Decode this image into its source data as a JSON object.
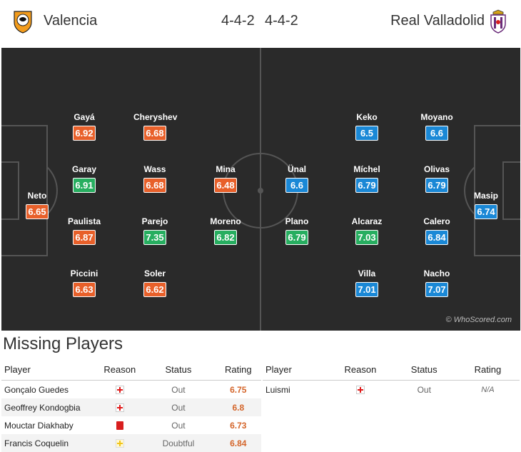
{
  "header": {
    "home_team": "Valencia",
    "home_formation": "4-4-2",
    "away_formation": "4-4-2",
    "away_team": "Real Valladolid"
  },
  "pitch": {
    "copyright": "© WhoScored.com",
    "home_players": [
      {
        "name": "Neto",
        "rating": "6.65",
        "color": "orange"
      },
      {
        "name": "Gayá",
        "rating": "6.92",
        "color": "orange"
      },
      {
        "name": "Garay",
        "rating": "6.91",
        "color": "green"
      },
      {
        "name": "Paulista",
        "rating": "6.87",
        "color": "orange"
      },
      {
        "name": "Piccini",
        "rating": "6.63",
        "color": "orange"
      },
      {
        "name": "Cheryshev",
        "rating": "6.68",
        "color": "orange"
      },
      {
        "name": "Wass",
        "rating": "6.68",
        "color": "orange"
      },
      {
        "name": "Parejo",
        "rating": "7.35",
        "color": "green"
      },
      {
        "name": "Soler",
        "rating": "6.62",
        "color": "orange"
      },
      {
        "name": "Mina",
        "rating": "6.48",
        "color": "orange"
      },
      {
        "name": "Moreno",
        "rating": "6.82",
        "color": "green"
      }
    ],
    "away_players": [
      {
        "name": "Ünal",
        "rating": "6.6",
        "color": "blue"
      },
      {
        "name": "Plano",
        "rating": "6.79",
        "color": "green"
      },
      {
        "name": "Keko",
        "rating": "6.5",
        "color": "blue"
      },
      {
        "name": "Míchel",
        "rating": "6.79",
        "color": "blue"
      },
      {
        "name": "Alcaraz",
        "rating": "7.03",
        "color": "green"
      },
      {
        "name": "Villa",
        "rating": "7.01",
        "color": "blue"
      },
      {
        "name": "Moyano",
        "rating": "6.6",
        "color": "blue"
      },
      {
        "name": "Olivas",
        "rating": "6.79",
        "color": "blue"
      },
      {
        "name": "Calero",
        "rating": "6.84",
        "color": "blue"
      },
      {
        "name": "Nacho",
        "rating": "7.07",
        "color": "blue"
      },
      {
        "name": "Masip",
        "rating": "6.74",
        "color": "blue"
      }
    ]
  },
  "colors": {
    "rating_orange": "#e8602a",
    "rating_green": "#27ae60",
    "rating_blue": "#1a88d6",
    "pitch": "#2a2a2a"
  },
  "missing": {
    "title": "Missing Players",
    "columns": {
      "player": "Player",
      "reason": "Reason",
      "status": "Status",
      "rating": "Rating"
    },
    "home": [
      {
        "player": "Gonçalo Guedes",
        "reason": "injury-icon",
        "status": "Out",
        "rating": "6.75"
      },
      {
        "player": "Geoffrey Kondogbia",
        "reason": "injury-icon",
        "status": "Out",
        "rating": "6.8"
      },
      {
        "player": "Mouctar Diakhaby",
        "reason": "red-card-icon",
        "status": "Out",
        "rating": "6.73"
      },
      {
        "player": "Francis Coquelin",
        "reason": "doubtful-icon",
        "status": "Doubtful",
        "rating": "6.84"
      }
    ],
    "away": [
      {
        "player": "Luismi",
        "reason": "injury-icon",
        "status": "Out",
        "rating": "N/A"
      }
    ]
  }
}
